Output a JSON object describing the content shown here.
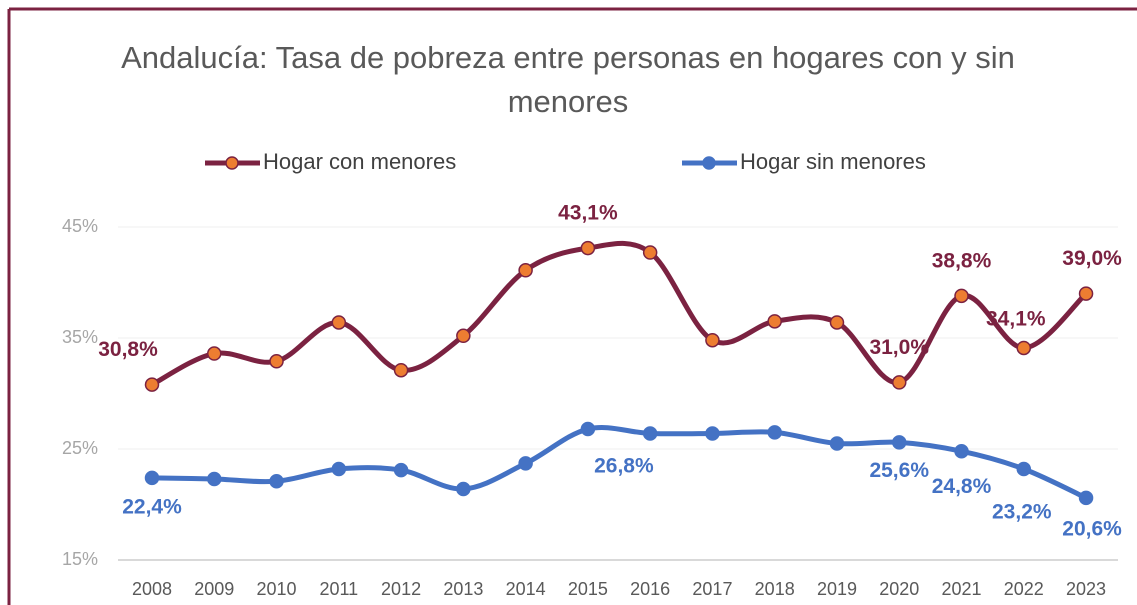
{
  "chart_data": {
    "type": "line",
    "title": "Andalucía: Tasa de pobreza entre personas en hogares con y sin menores",
    "categories": [
      "2008",
      "2009",
      "2010",
      "2011",
      "2012",
      "2013",
      "2014",
      "2015",
      "2016",
      "2017",
      "2018",
      "2019",
      "2020",
      "2021",
      "2022",
      "2023"
    ],
    "series": [
      {
        "name": "Hogar con menores",
        "color": "#7B2241",
        "marker_color": "#ED7D31",
        "values": [
          30.8,
          33.6,
          32.9,
          36.4,
          32.1,
          35.2,
          41.1,
          43.1,
          42.7,
          34.8,
          36.5,
          36.4,
          31.0,
          38.8,
          34.1,
          39.0
        ],
        "value_labels": [
          "30,8%",
          null,
          null,
          null,
          null,
          null,
          null,
          "43,1%",
          null,
          null,
          null,
          null,
          "31,0%",
          "38,8%",
          "34,1%",
          "39,0%"
        ]
      },
      {
        "name": "Hogar sin menores",
        "color": "#4472C4",
        "marker_color": "#4472C4",
        "values": [
          22.4,
          22.3,
          22.1,
          23.2,
          23.1,
          21.4,
          23.7,
          26.8,
          26.4,
          26.4,
          26.5,
          25.5,
          25.6,
          24.8,
          23.2,
          20.6
        ],
        "value_labels": [
          "22,4%",
          null,
          null,
          null,
          null,
          null,
          null,
          "26,8%",
          null,
          null,
          null,
          null,
          "25,6%",
          "24,8%",
          "23,2%",
          "20,6%"
        ]
      }
    ],
    "ylim": [
      15,
      45
    ],
    "yticks": [
      {
        "value": 15,
        "label": "15%"
      },
      {
        "value": 25,
        "label": "25%"
      },
      {
        "value": 35,
        "label": "35%"
      },
      {
        "value": 45,
        "label": "45%"
      }
    ],
    "grid": true,
    "smooth": true,
    "legend": "top"
  }
}
